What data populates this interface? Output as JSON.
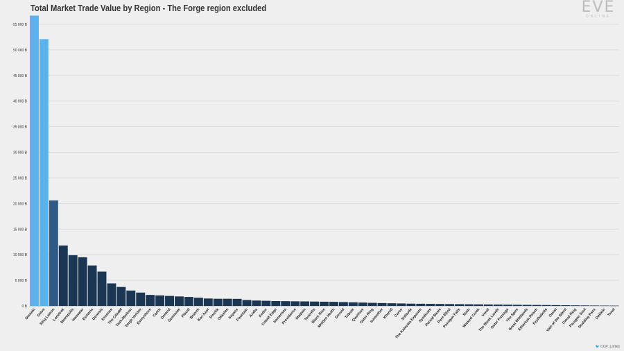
{
  "header": {
    "title": "Total Market Trade Value by Region - The Forge region excluded"
  },
  "logo": {
    "main": "EVE",
    "sub": "ONLINE"
  },
  "credit": {
    "text": "CCP_Lorikis"
  },
  "colors": {
    "highlight": "#5bb3ee",
    "mid": "#2f5a85",
    "dark": "#1a3652",
    "grid": "#d6d6d6"
  },
  "chart_data": {
    "type": "bar",
    "title": "Total Market Trade Value by Region - The Forge region excluded",
    "xlabel": "",
    "ylabel": "",
    "ylim": [
      0,
      55000
    ],
    "yticks": [
      0,
      5000,
      10000,
      15000,
      20000,
      25000,
      30000,
      35000,
      40000,
      45000,
      50000,
      55000
    ],
    "ytick_labels": [
      "0 B",
      "5 000 B",
      "10 000 B",
      "15 000 B",
      "20 000 B",
      "25 000 B",
      "30 000 B",
      "35 000 B",
      "40 000 B",
      "45 000 B",
      "50 000 B",
      "55 000 B"
    ],
    "grid": true,
    "legend": "none",
    "categories": [
      "Domain",
      "Delve",
      "Sinq Laison",
      "Lonetrek",
      "Metropolis",
      "Heimatar",
      "Esoteria",
      "Genesis",
      "Essence",
      "The Citadel",
      "Tash-Murkon",
      "Verge Vendor",
      "Everyshore",
      "Catch",
      "Detorid",
      "Geminate",
      "Placid",
      "Branch",
      "Kor-Azor",
      "Derelik",
      "Okkelen",
      "Impass",
      "Fountain",
      "Aridia",
      "Kador",
      "Cobalt Edge",
      "Immensea",
      "Providence",
      "Malpais",
      "Tenerifis",
      "Black Rise",
      "Molden Heath",
      "Devoid",
      "Tribute",
      "Querious",
      "Outer Ring",
      "Insmother",
      "Khanid",
      "Curse",
      "Solitude",
      "The Kalevala Expanse",
      "Syndicate",
      "Period Basis",
      "Pure Blind",
      "Perrigen Falls",
      "Stain",
      "Wicked Creek",
      "Venal",
      "The Bleak Lands",
      "Outer Passage",
      "The Spire",
      "Great Wildlands",
      "Etherium Reach",
      "Feythabolis",
      "Omist",
      "Vale of the Silent",
      "Cloud Ring",
      "Paragon Soul",
      "Scalding Pass",
      "Deklein",
      "Tenal"
    ],
    "values": [
      56700,
      52100,
      20600,
      11800,
      9900,
      9500,
      7900,
      6700,
      4400,
      3700,
      3000,
      2600,
      2150,
      2050,
      1950,
      1850,
      1750,
      1600,
      1450,
      1400,
      1400,
      1380,
      1150,
      1050,
      1000,
      950,
      930,
      900,
      880,
      850,
      820,
      800,
      750,
      700,
      650,
      600,
      560,
      520,
      480,
      440,
      420,
      400,
      380,
      360,
      340,
      320,
      300,
      280,
      260,
      240,
      220,
      200,
      185,
      170,
      150,
      130,
      110,
      95,
      80,
      65,
      50
    ],
    "highlight_count": 2,
    "mid_count": 1
  }
}
